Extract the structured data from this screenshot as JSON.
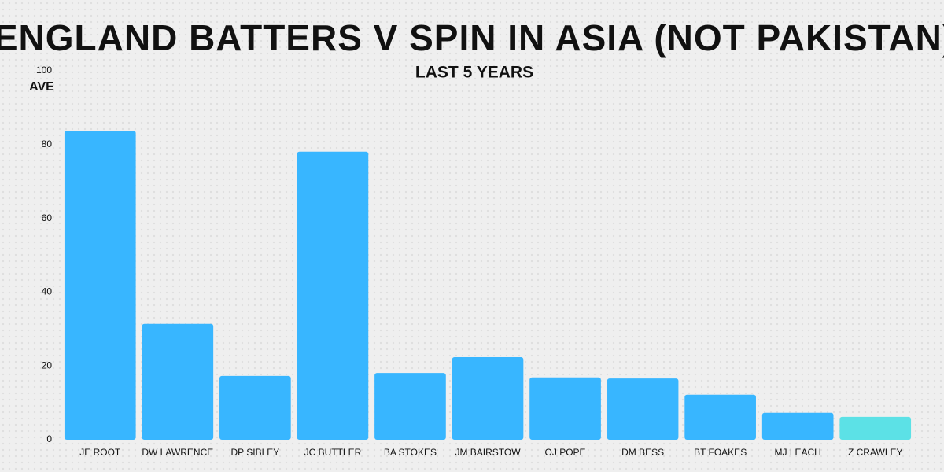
{
  "chart_data": {
    "type": "bar",
    "title": "ENGLAND BATTERS V SPIN IN ASIA (NOT PAKISTAN)",
    "subtitle": "LAST 5 YEARS",
    "y_label": "AVE",
    "categories": [
      "JE ROOT",
      "DW LAWRENCE",
      "DP SIBLEY",
      "JC BUTTLER",
      "BA STOKES",
      "JM BAIRSTOW",
      "OJ POPE",
      "DM BESS",
      "BT FOAKES",
      "MJ LEACH",
      "Z CRAWLEY"
    ],
    "values": [
      83.8,
      31.4,
      17.3,
      78.1,
      18.1,
      22.4,
      16.9,
      16.6,
      12.2,
      7.3,
      6.2
    ],
    "colors": [
      "#38b6ff",
      "#38b6ff",
      "#38b6ff",
      "#38b6ff",
      "#38b6ff",
      "#38b6ff",
      "#38b6ff",
      "#38b6ff",
      "#38b6ff",
      "#38b6ff",
      "#5ce1e6"
    ],
    "ylim": [
      0,
      100
    ],
    "yticks": [
      0,
      20,
      40,
      60,
      80,
      100
    ],
    "grid": false
  }
}
